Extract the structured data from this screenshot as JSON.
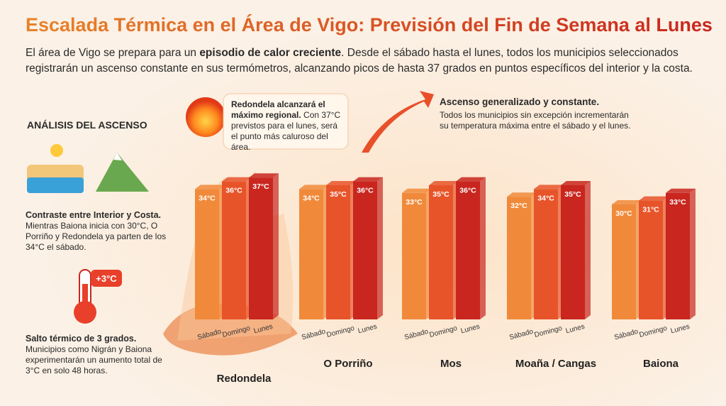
{
  "chart_data": {
    "type": "bar",
    "title": "Escalada Térmica en el Área de Vigo: Previsión del Fin de Semana al Lunes",
    "subtitle": [
      "El área de Vigo se prepara para un ",
      "episodio de calor creciente",
      ". Desde el sábado hasta el lunes, todos los municipios seleccionados registrarán un ascenso constante en sus termómetros, alcanzando picos de hasta 37 grados en puntos específicos del interior y la costa."
    ],
    "categories": [
      "Redondela",
      "O Porriño",
      "Mos",
      "Moaña / Cangas",
      "Baiona"
    ],
    "series": [
      {
        "name": "Sábado",
        "color": "#f08a3a",
        "values": [
          34,
          34,
          33,
          32,
          30
        ],
        "value_labels": [
          "34°C",
          "34°C",
          "33°C",
          "32°C",
          "30°C"
        ]
      },
      {
        "name": "Domingo",
        "color": "#e8542a",
        "values": [
          36,
          35,
          35,
          34,
          31
        ],
        "value_labels": [
          "36°C",
          "35°C",
          "35°C",
          "34°C",
          "31°C"
        ]
      },
      {
        "name": "Lunes",
        "color": "#c8261f",
        "values": [
          37,
          36,
          36,
          35,
          33
        ],
        "value_labels": [
          "37°C",
          "36°C",
          "36°C",
          "35°C",
          "33°C"
        ]
      }
    ]
  },
  "sidebar": {
    "heading": "ANÁLISIS DEL ASCENSO",
    "blocks": [
      {
        "title": "Contraste entre Interior y Costa.",
        "text": "Mientras Baiona inicia con 30°C, O Porriño y Redondela ya parten de los 34°C el sábado."
      },
      {
        "badge": "+3°C",
        "title": "Salto térmico de 3 grados.",
        "text": "Municipios como Nigrán y Baiona experimentarán un aumento total de 3°C en solo 48 horas."
      }
    ]
  },
  "callouts": [
    {
      "title": "Redondela alcanzará el máximo regional.",
      "text": "Con 37°C previstos para el lunes, será el punto más caluroso del área."
    },
    {
      "title": "Ascenso generalizado y constante.",
      "text": "Todos los municipios sin excepción incrementarán su temperatura máxima entre el sábado y el lunes."
    }
  ]
}
